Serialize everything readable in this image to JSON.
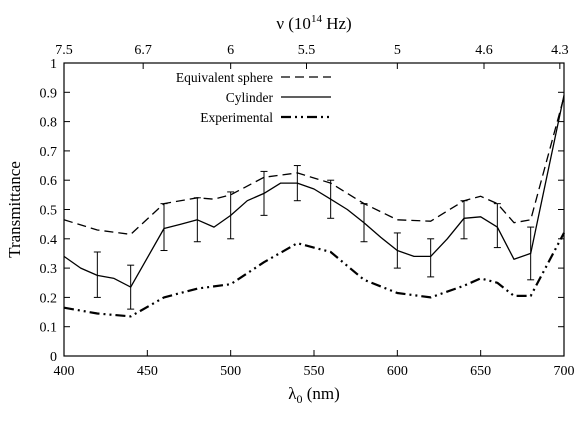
{
  "chart_data": {
    "type": "line",
    "xlabel": "λ",
    "xlabel_sub": "0",
    "xlabel_unit": " (nm)",
    "ylabel": "Transmittance",
    "x2label": "ν (10",
    "x2label_sup": "14",
    "x2label_unit": " Hz)",
    "xlim": [
      400,
      700
    ],
    "ylim": [
      0,
      1
    ],
    "xticks": [
      400,
      450,
      500,
      550,
      600,
      650,
      700
    ],
    "xtick_labels": [
      "400",
      "450",
      "500",
      "550",
      "600",
      "650",
      "700"
    ],
    "yticks": [
      0,
      0.1,
      0.2,
      0.3,
      0.4,
      0.5,
      0.6,
      0.7,
      0.8,
      0.9,
      1
    ],
    "ytick_labels": [
      "0",
      "0.1",
      "0.2",
      "0.3",
      "0.4",
      "0.5",
      "0.6",
      "0.7",
      "0.8",
      "0.9",
      "1"
    ],
    "x2ticks": [
      {
        "at": 400,
        "label": "7.5"
      },
      {
        "at": 447.5,
        "label": "6.7"
      },
      {
        "at": 500,
        "label": "6"
      },
      {
        "at": 545.5,
        "label": "5.5"
      },
      {
        "at": 600,
        "label": "5"
      },
      {
        "at": 652,
        "label": "4.6"
      },
      {
        "at": 697.5,
        "label": "4.3"
      }
    ],
    "legend_position": "top-left",
    "series": [
      {
        "name": "Equivalent sphere",
        "style": "dashed",
        "x": [
          400,
          420,
          440,
          460,
          480,
          490,
          500,
          520,
          540,
          560,
          580,
          600,
          620,
          640,
          650,
          660,
          670,
          680,
          700
        ],
        "y": [
          0.465,
          0.43,
          0.415,
          0.52,
          0.54,
          0.535,
          0.55,
          0.61,
          0.625,
          0.59,
          0.52,
          0.465,
          0.46,
          0.53,
          0.545,
          0.52,
          0.455,
          0.465,
          0.885
        ]
      },
      {
        "name": "Cylinder",
        "style": "solid",
        "x": [
          400,
          410,
          420,
          430,
          440,
          460,
          470,
          480,
          490,
          500,
          510,
          520,
          530,
          540,
          550,
          560,
          570,
          580,
          590,
          600,
          610,
          620,
          630,
          640,
          650,
          660,
          670,
          680,
          700
        ],
        "y": [
          0.34,
          0.3,
          0.275,
          0.265,
          0.235,
          0.435,
          0.45,
          0.465,
          0.44,
          0.48,
          0.53,
          0.555,
          0.59,
          0.59,
          0.57,
          0.535,
          0.5,
          0.455,
          0.405,
          0.36,
          0.34,
          0.34,
          0.4,
          0.47,
          0.475,
          0.44,
          0.33,
          0.35,
          0.89
        ],
        "error_bars": [
          {
            "x": 420,
            "low": 0.2,
            "high": 0.355
          },
          {
            "x": 440,
            "low": 0.16,
            "high": 0.31
          },
          {
            "x": 460,
            "low": 0.36,
            "high": 0.52
          },
          {
            "x": 480,
            "low": 0.39,
            "high": 0.54
          },
          {
            "x": 500,
            "low": 0.4,
            "high": 0.56
          },
          {
            "x": 520,
            "low": 0.48,
            "high": 0.63
          },
          {
            "x": 540,
            "low": 0.53,
            "high": 0.65
          },
          {
            "x": 560,
            "low": 0.47,
            "high": 0.6
          },
          {
            "x": 580,
            "low": 0.39,
            "high": 0.52
          },
          {
            "x": 600,
            "low": 0.3,
            "high": 0.42
          },
          {
            "x": 620,
            "low": 0.27,
            "high": 0.4
          },
          {
            "x": 640,
            "low": 0.4,
            "high": 0.53
          },
          {
            "x": 660,
            "low": 0.37,
            "high": 0.52
          },
          {
            "x": 680,
            "low": 0.26,
            "high": 0.44
          }
        ]
      },
      {
        "name": "Experimental",
        "style": "dash-dot-dot",
        "x": [
          400,
          420,
          440,
          460,
          480,
          500,
          520,
          540,
          560,
          580,
          600,
          620,
          640,
          650,
          660,
          670,
          680,
          700
        ],
        "y": [
          0.165,
          0.145,
          0.135,
          0.2,
          0.23,
          0.245,
          0.32,
          0.385,
          0.355,
          0.26,
          0.215,
          0.2,
          0.24,
          0.265,
          0.25,
          0.205,
          0.205,
          0.42
        ]
      }
    ]
  }
}
